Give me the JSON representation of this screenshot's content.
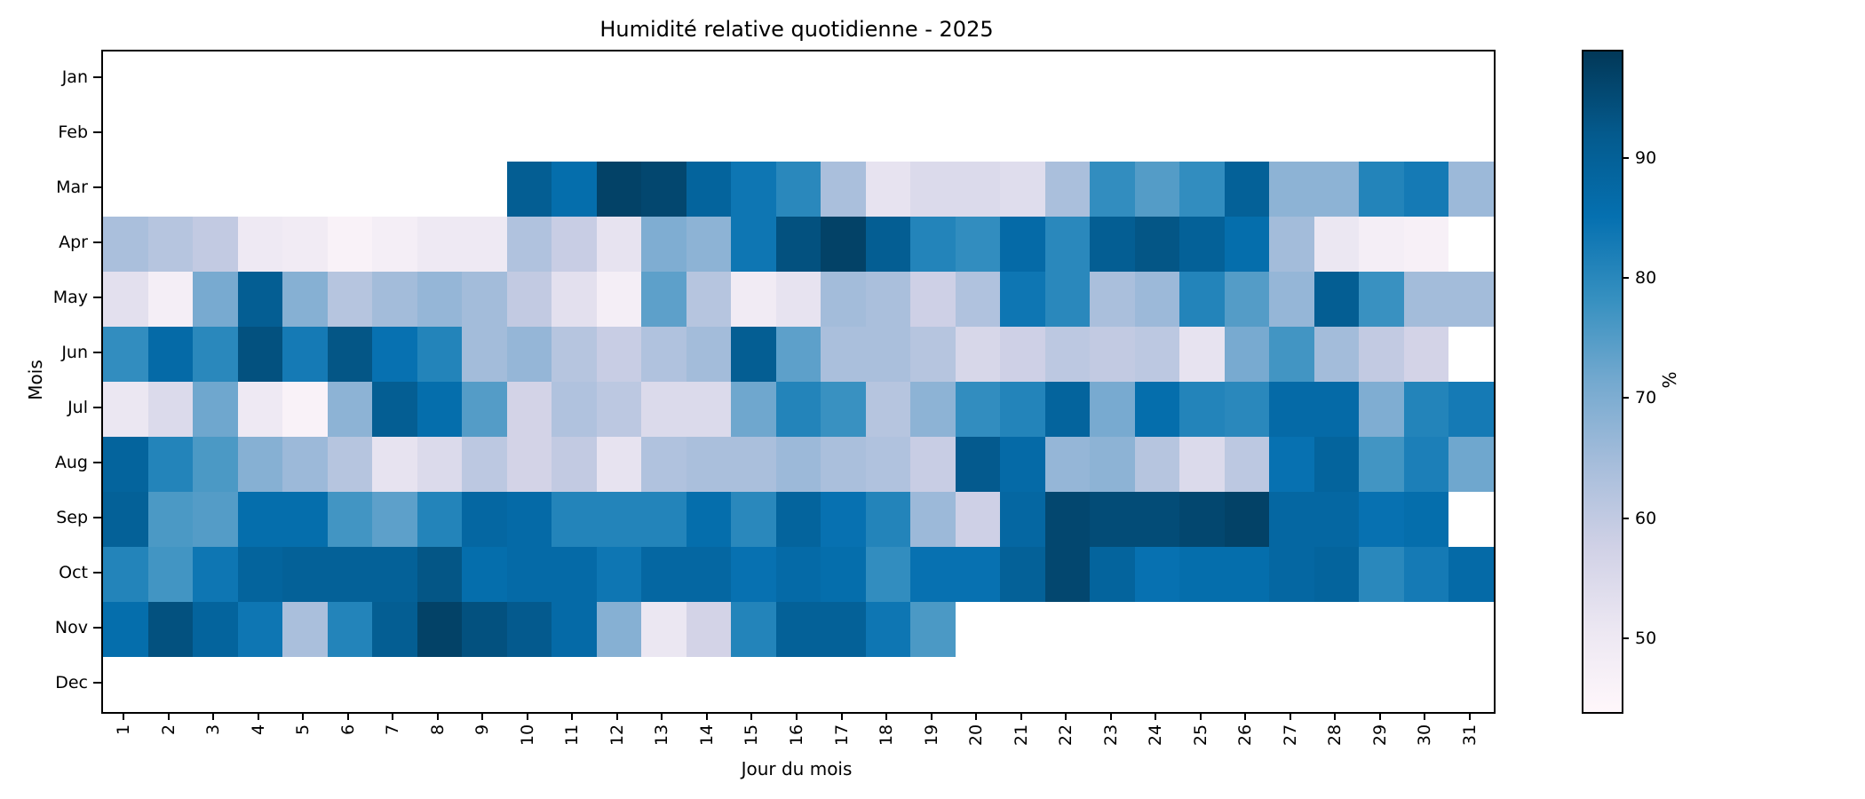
{
  "title": "Humidité relative quotidienne - 2025",
  "chart_data": {
    "type": "heatmap",
    "title": "Humidité relative quotidienne - 2025",
    "xlabel": "Jour du mois",
    "ylabel": "Mois",
    "colormap": "PuBu",
    "colormap_stops": [
      "#fff7fb",
      "#ece7f2",
      "#d0d1e6",
      "#a6bddb",
      "#74a9cf",
      "#3690c0",
      "#0570b0",
      "#045a8d",
      "#023858"
    ],
    "vmin": 44,
    "vmax": 99,
    "colorbar_label": "%",
    "colorbar_ticks": [
      50,
      60,
      70,
      80,
      90
    ],
    "x_categories": [
      1,
      2,
      3,
      4,
      5,
      6,
      7,
      8,
      9,
      10,
      11,
      12,
      13,
      14,
      15,
      16,
      17,
      18,
      19,
      20,
      21,
      22,
      23,
      24,
      25,
      26,
      27,
      28,
      29,
      30,
      31
    ],
    "y_categories": [
      "Jan",
      "Feb",
      "Mar",
      "Apr",
      "May",
      "Jun",
      "Jul",
      "Aug",
      "Sep",
      "Oct",
      "Nov",
      "Dec"
    ],
    "values_unit": "%",
    "matrix": [
      [
        null,
        null,
        null,
        null,
        null,
        null,
        null,
        null,
        null,
        null,
        null,
        null,
        null,
        null,
        null,
        null,
        null,
        null,
        null,
        null,
        null,
        null,
        null,
        null,
        null,
        null,
        null,
        null,
        null,
        null,
        null
      ],
      [
        null,
        null,
        null,
        null,
        null,
        null,
        null,
        null,
        null,
        null,
        null,
        null,
        null,
        null,
        null,
        null,
        null,
        null,
        null,
        null,
        null,
        null,
        null,
        null,
        null,
        null,
        null,
        null,
        null,
        null,
        null
      ],
      [
        null,
        null,
        null,
        null,
        null,
        null,
        null,
        null,
        null,
        91,
        86,
        97,
        96,
        89,
        84,
        80,
        64,
        52,
        55,
        55,
        54,
        64,
        79,
        75,
        79,
        90,
        68,
        68,
        81,
        83,
        66
      ],
      [
        64,
        62,
        60,
        50,
        49,
        46,
        48,
        50,
        50,
        63,
        59,
        52,
        70,
        68,
        84,
        94,
        97,
        91,
        81,
        79,
        87,
        80,
        91,
        93,
        90,
        86,
        65,
        51,
        48,
        47,
        null
      ],
      [
        53,
        48,
        71,
        91,
        69,
        62,
        65,
        67,
        65,
        60,
        53,
        48,
        74,
        62,
        49,
        52,
        65,
        64,
        58,
        63,
        84,
        80,
        64,
        66,
        81,
        75,
        67,
        91,
        78,
        65,
        65
      ],
      [
        79,
        87,
        80,
        94,
        83,
        93,
        85,
        81,
        65,
        67,
        62,
        59,
        63,
        65,
        91,
        74,
        64,
        64,
        62,
        56,
        58,
        61,
        60,
        61,
        52,
        71,
        77,
        65,
        60,
        57,
        null
      ],
      [
        51,
        55,
        72,
        50,
        46,
        68,
        91,
        86,
        75,
        57,
        63,
        61,
        55,
        55,
        72,
        81,
        78,
        62,
        68,
        79,
        81,
        89,
        71,
        86,
        81,
        80,
        87,
        87,
        70,
        81,
        83
      ],
      [
        89,
        81,
        76,
        69,
        66,
        62,
        52,
        55,
        61,
        57,
        60,
        52,
        63,
        64,
        64,
        66,
        64,
        63,
        59,
        92,
        87,
        67,
        68,
        62,
        55,
        61,
        85,
        89,
        77,
        82,
        72
      ],
      [
        90,
        76,
        75,
        86,
        86,
        77,
        74,
        81,
        88,
        87,
        81,
        81,
        81,
        86,
        80,
        89,
        85,
        81,
        66,
        58,
        88,
        96,
        95,
        95,
        96,
        97,
        88,
        88,
        85,
        86,
        null
      ],
      [
        81,
        77,
        84,
        89,
        90,
        90,
        90,
        93,
        86,
        87,
        87,
        84,
        88,
        88,
        85,
        87,
        86,
        79,
        85,
        85,
        90,
        96,
        89,
        85,
        86,
        86,
        88,
        89,
        80,
        83,
        87
      ],
      [
        86,
        94,
        89,
        84,
        64,
        81,
        91,
        97,
        94,
        92,
        87,
        69,
        51,
        57,
        81,
        90,
        90,
        84,
        76,
        null,
        null,
        null,
        null,
        null,
        null,
        null,
        null,
        null,
        null,
        null,
        null
      ],
      [
        null,
        null,
        null,
        null,
        null,
        null,
        null,
        null,
        null,
        null,
        null,
        null,
        null,
        null,
        null,
        null,
        null,
        null,
        null,
        null,
        null,
        null,
        null,
        null,
        null,
        null,
        null,
        null,
        null,
        null,
        null
      ]
    ]
  }
}
